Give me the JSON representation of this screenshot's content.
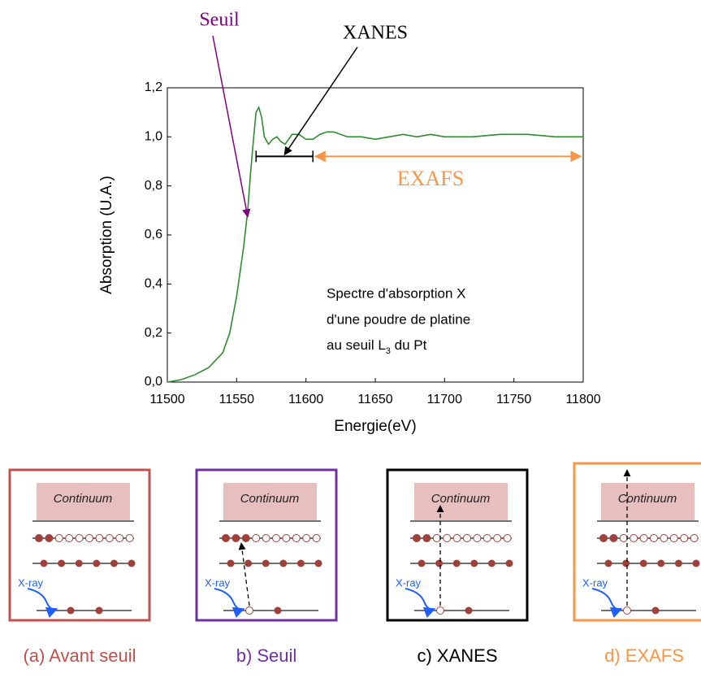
{
  "chart_data": {
    "type": "line",
    "x_label": "Energie(eV)",
    "y_label": "Absorption (U.A.)",
    "x": [
      11500,
      11510,
      11520,
      11530,
      11540,
      11545,
      11550,
      11555,
      11558,
      11560,
      11562,
      11564,
      11566,
      11568,
      11570,
      11573,
      11576,
      11579,
      11582,
      11585,
      11590,
      11595,
      11600,
      11605,
      11610,
      11615,
      11620,
      11630,
      11640,
      11650,
      11660,
      11670,
      11680,
      11690,
      11700,
      11720,
      11740,
      11760,
      11780,
      11800
    ],
    "values": [
      0.0,
      0.01,
      0.03,
      0.06,
      0.12,
      0.2,
      0.35,
      0.55,
      0.7,
      0.85,
      0.98,
      1.1,
      1.12,
      1.08,
      1.0,
      0.97,
      0.99,
      1.0,
      0.98,
      0.97,
      1.01,
      1.01,
      0.99,
      0.99,
      1.01,
      1.02,
      1.02,
      1.0,
      1.0,
      0.99,
      1.0,
      1.01,
      1.0,
      1.01,
      1.0,
      1.0,
      1.01,
      1.01,
      1.0,
      1.0
    ],
    "color": "#2e8b2e",
    "xlim": [
      11500,
      11800
    ],
    "ylim": [
      0,
      1.2
    ],
    "xticks": [
      11500,
      11550,
      11600,
      11650,
      11700,
      11750,
      11800
    ],
    "yticks": [
      {
        "value": 0,
        "label": "0,0"
      },
      {
        "value": 0.2,
        "label": "0,2"
      },
      {
        "value": 0.4,
        "label": "0,4"
      },
      {
        "value": 0.6,
        "label": "0,6"
      },
      {
        "value": 0.8,
        "label": "0,8"
      },
      {
        "value": 1.0,
        "label": "1,0"
      },
      {
        "value": 1.2,
        "label": "1,2"
      }
    ],
    "annotations": {
      "seuil": {
        "text": "Seuil",
        "color": "#800080"
      },
      "xanes": {
        "text": "XANES",
        "range": [
          11564,
          11605
        ],
        "color": "#000000"
      },
      "exafs": {
        "text": "EXAFS",
        "range": [
          11605,
          11800
        ],
        "color": "#f79646"
      }
    },
    "note": [
      "Spectre d'absorption X",
      "d'une poudre de platine"
    ],
    "note_last": {
      "text": "au seuil L",
      "sub": "3",
      "tail": " du Pt"
    }
  },
  "panels": [
    {
      "caption": "(a) Avant seuil",
      "continuum": "Continuum",
      "xray": "X-ray",
      "color": "#c0504d"
    },
    {
      "caption": "b) Seuil",
      "continuum": "Continuum",
      "xray": "X-ray",
      "color": "#7030a0"
    },
    {
      "caption": "c) XANES",
      "continuum": "Continuum",
      "xray": "X-ray",
      "color": "#000000"
    },
    {
      "caption": "d) EXAFS",
      "continuum": "Continuum",
      "xray": "X-ray",
      "color": "#f79646"
    }
  ]
}
